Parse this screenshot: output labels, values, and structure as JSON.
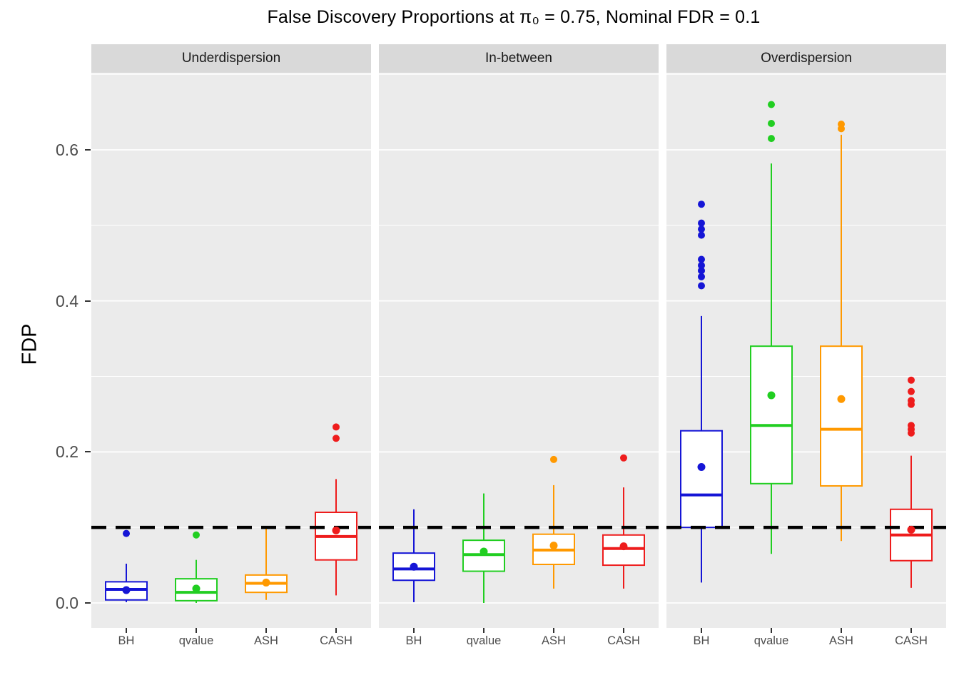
{
  "chart_data": {
    "type": "boxplot",
    "title": "False Discovery Proportions at π₀ = 0.75, Nominal FDR = 0.1",
    "ylabel": "FDP",
    "ylim": [
      -0.033,
      0.701
    ],
    "yticks": [
      0,
      0.2,
      0.4,
      0.6
    ],
    "ytick_labels": [
      "0.0",
      "0.2",
      "0.4",
      "0.6"
    ],
    "minor_ticks": [
      0.1,
      0.3,
      0.5,
      0.7
    ],
    "grid": "white-on-grey",
    "legend": "none",
    "panel_bg": "#EBEBEB",
    "strip_bg": "#D9D9D9",
    "reference_line": {
      "value": 0.1,
      "style": "dashed",
      "color": "#000000",
      "label": "Nominal FDR"
    },
    "facets": [
      "Underdispersion",
      "In-between",
      "Overdispersion"
    ],
    "methods": [
      "BH",
      "qvalue",
      "ASH",
      "CASH"
    ],
    "method_colors": {
      "BH": "#1515D6",
      "qvalue": "#21CE21",
      "ASH": "#FF9900",
      "CASH": "#EE1C1C"
    },
    "series": [
      {
        "facet": "Underdispersion",
        "boxes": [
          {
            "method": "BH",
            "whisker_low": 0.001,
            "q1": 0.004,
            "median": 0.018,
            "q3": 0.028,
            "whisker_high": 0.052,
            "mean": 0.017,
            "outliers": [
              0.092
            ]
          },
          {
            "method": "qvalue",
            "whisker_low": 0.0,
            "q1": 0.003,
            "median": 0.014,
            "q3": 0.032,
            "whisker_high": 0.057,
            "mean": 0.019,
            "outliers": [
              0.09
            ]
          },
          {
            "method": "ASH",
            "whisker_low": 0.004,
            "q1": 0.014,
            "median": 0.026,
            "q3": 0.037,
            "whisker_high": 0.099,
            "mean": 0.027,
            "outliers": []
          },
          {
            "method": "CASH",
            "whisker_low": 0.01,
            "q1": 0.057,
            "median": 0.088,
            "q3": 0.12,
            "whisker_high": 0.164,
            "mean": 0.096,
            "outliers": [
              0.218,
              0.233
            ]
          }
        ]
      },
      {
        "facet": "In-between",
        "boxes": [
          {
            "method": "BH",
            "whisker_low": 0.001,
            "q1": 0.03,
            "median": 0.045,
            "q3": 0.066,
            "whisker_high": 0.124,
            "mean": 0.048,
            "outliers": []
          },
          {
            "method": "qvalue",
            "whisker_low": 0.0,
            "q1": 0.042,
            "median": 0.064,
            "q3": 0.083,
            "whisker_high": 0.145,
            "mean": 0.068,
            "outliers": []
          },
          {
            "method": "ASH",
            "whisker_low": 0.019,
            "q1": 0.051,
            "median": 0.07,
            "q3": 0.091,
            "whisker_high": 0.156,
            "mean": 0.076,
            "outliers": [
              0.19
            ]
          },
          {
            "method": "CASH",
            "whisker_low": 0.019,
            "q1": 0.05,
            "median": 0.072,
            "q3": 0.09,
            "whisker_high": 0.153,
            "mean": 0.075,
            "outliers": [
              0.192
            ]
          }
        ]
      },
      {
        "facet": "Overdispersion",
        "boxes": [
          {
            "method": "BH",
            "whisker_low": 0.027,
            "q1": 0.1,
            "median": 0.143,
            "q3": 0.228,
            "whisker_high": 0.38,
            "mean": 0.18,
            "outliers": [
              0.42,
              0.432,
              0.44,
              0.447,
              0.455,
              0.487,
              0.495,
              0.503,
              0.528
            ]
          },
          {
            "method": "qvalue",
            "whisker_low": 0.065,
            "q1": 0.158,
            "median": 0.235,
            "q3": 0.34,
            "whisker_high": 0.582,
            "mean": 0.275,
            "outliers": [
              0.615,
              0.635,
              0.66
            ]
          },
          {
            "method": "ASH",
            "whisker_low": 0.082,
            "q1": 0.155,
            "median": 0.23,
            "q3": 0.34,
            "whisker_high": 0.62,
            "mean": 0.27,
            "outliers": [
              0.628,
              0.634
            ]
          },
          {
            "method": "CASH",
            "whisker_low": 0.02,
            "q1": 0.056,
            "median": 0.09,
            "q3": 0.124,
            "whisker_high": 0.195,
            "mean": 0.097,
            "outliers": [
              0.225,
              0.23,
              0.235,
              0.263,
              0.268,
              0.28,
              0.295
            ]
          }
        ]
      }
    ]
  }
}
